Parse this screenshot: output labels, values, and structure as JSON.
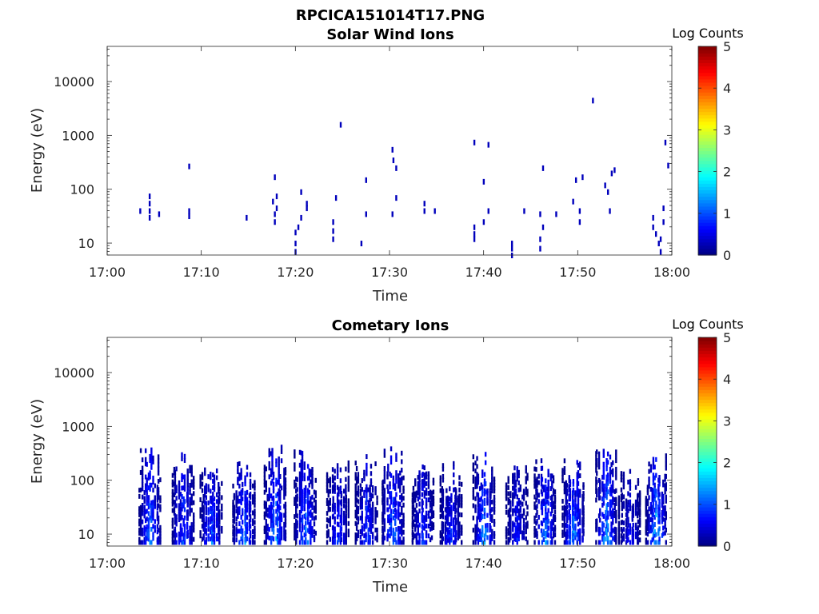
{
  "figure_title": "RPCICA151014T17.PNG",
  "colors": {
    "colormap": [
      "#00007f",
      "#0000ff",
      "#0080ff",
      "#00ffff",
      "#80ff80",
      "#ffff00",
      "#ff8000",
      "#ff0000",
      "#7f0000"
    ]
  },
  "chart_data": [
    {
      "type": "heatmap",
      "title": "Solar Wind Ions",
      "xlabel": "Time",
      "ylabel": "Energy (eV)",
      "x_ticks": [
        "17:00",
        "17:10",
        "17:20",
        "17:30",
        "17:40",
        "17:50",
        "18:00"
      ],
      "xlim_minutes": [
        0,
        60
      ],
      "y_ticks": [
        "10",
        "100",
        "1000",
        "10000"
      ],
      "ylim": [
        6,
        45000
      ],
      "y_scale": "log",
      "colorbar": {
        "label": "Log Counts",
        "ticks": [
          "0",
          "1",
          "2",
          "3",
          "4",
          "5"
        ],
        "range": [
          0,
          5
        ]
      },
      "points": [
        [
          3.5,
          40,
          0.3
        ],
        [
          4.5,
          30,
          0.3
        ],
        [
          4.5,
          40,
          0.3
        ],
        [
          4.5,
          55,
          0.3
        ],
        [
          4.5,
          75,
          0.3
        ],
        [
          5.5,
          35,
          0.3
        ],
        [
          8.7,
          32,
          0.3
        ],
        [
          8.7,
          40,
          0.3
        ],
        [
          8.7,
          270,
          0.3
        ],
        [
          14.8,
          30,
          0.3
        ],
        [
          17.6,
          60,
          0.3
        ],
        [
          17.8,
          35,
          0.3
        ],
        [
          17.8,
          25,
          0.3
        ],
        [
          17.8,
          170,
          0.3
        ],
        [
          18.0,
          45,
          0.3
        ],
        [
          18.0,
          75,
          0.3
        ],
        [
          20.0,
          10,
          0.3
        ],
        [
          20.0,
          7,
          0.3
        ],
        [
          20.0,
          16,
          0.3
        ],
        [
          20.3,
          20,
          0.3
        ],
        [
          20.6,
          30,
          0.3
        ],
        [
          20.6,
          90,
          0.3
        ],
        [
          21.2,
          45,
          0.3
        ],
        [
          21.2,
          55,
          0.3
        ],
        [
          24.0,
          12,
          0.3
        ],
        [
          24.0,
          17,
          0.3
        ],
        [
          24.0,
          25,
          0.3
        ],
        [
          24.3,
          70,
          0.3
        ],
        [
          24.8,
          1600,
          0.3
        ],
        [
          27.0,
          10,
          0.3
        ],
        [
          27.5,
          35,
          0.3
        ],
        [
          27.5,
          150,
          0.3
        ],
        [
          30.3,
          35,
          0.3
        ],
        [
          30.3,
          550,
          0.3
        ],
        [
          30.4,
          350,
          0.3
        ],
        [
          30.7,
          70,
          0.3
        ],
        [
          30.7,
          250,
          0.3
        ],
        [
          33.7,
          40,
          0.3
        ],
        [
          33.7,
          55,
          0.3
        ],
        [
          34.8,
          40,
          0.3
        ],
        [
          39.0,
          12,
          0.3
        ],
        [
          39.0,
          15,
          0.3
        ],
        [
          39.0,
          20,
          0.3
        ],
        [
          39.0,
          750,
          0.3
        ],
        [
          40.0,
          25,
          0.3
        ],
        [
          40.0,
          140,
          0.3
        ],
        [
          40.5,
          40,
          0.3
        ],
        [
          40.5,
          680,
          0.3
        ],
        [
          43.0,
          6,
          0.3
        ],
        [
          43.0,
          8,
          0.3
        ],
        [
          43.0,
          10,
          0.3
        ],
        [
          44.3,
          40,
          0.3
        ],
        [
          46.0,
          8,
          0.3
        ],
        [
          46.0,
          12,
          0.3
        ],
        [
          46.3,
          20,
          0.3
        ],
        [
          46.3,
          250,
          0.3
        ],
        [
          46.0,
          35,
          0.3
        ],
        [
          47.7,
          35,
          0.3
        ],
        [
          49.5,
          60,
          0.3
        ],
        [
          49.8,
          150,
          0.3
        ],
        [
          50.2,
          40,
          0.3
        ],
        [
          50.2,
          25,
          0.3
        ],
        [
          50.5,
          170,
          0.3
        ],
        [
          51.6,
          4500,
          0.3
        ],
        [
          52.9,
          120,
          0.3
        ],
        [
          53.2,
          90,
          0.3
        ],
        [
          53.4,
          40,
          0.3
        ],
        [
          53.6,
          200,
          0.3
        ],
        [
          53.9,
          230,
          0.3
        ],
        [
          58.0,
          30,
          0.3
        ],
        [
          58.0,
          20,
          0.3
        ],
        [
          58.3,
          15,
          0.3
        ],
        [
          58.6,
          10,
          0.3
        ],
        [
          58.8,
          7,
          0.3
        ],
        [
          58.8,
          12,
          0.3
        ],
        [
          59.1,
          25,
          0.3
        ],
        [
          59.1,
          45,
          0.3
        ],
        [
          59.3,
          750,
          0.3
        ],
        [
          59.6,
          280,
          0.3
        ]
      ]
    },
    {
      "type": "heatmap",
      "title": "Cometary Ions",
      "xlabel": "Time",
      "ylabel": "Energy (eV)",
      "x_ticks": [
        "17:00",
        "17:10",
        "17:20",
        "17:30",
        "17:40",
        "17:50",
        "18:00"
      ],
      "xlim_minutes": [
        0,
        60
      ],
      "y_ticks": [
        "10",
        "100",
        "1000",
        "10000"
      ],
      "ylim": [
        6,
        45000
      ],
      "y_scale": "log",
      "colorbar": {
        "label": "Log Counts",
        "ticks": [
          "0",
          "1",
          "2",
          "3",
          "4",
          "5"
        ],
        "range": [
          0,
          5
        ]
      },
      "bursts": [
        {
          "t": 4.5,
          "emax": 450,
          "peak": 1.3
        },
        {
          "t": 8.0,
          "emax": 400,
          "peak": 1.1
        },
        {
          "t": 11.0,
          "emax": 250,
          "peak": 1.2
        },
        {
          "t": 14.5,
          "emax": 250,
          "peak": 1.3
        },
        {
          "t": 17.8,
          "emax": 600,
          "peak": 1.4
        },
        {
          "t": 21.0,
          "emax": 500,
          "peak": 1.3
        },
        {
          "t": 24.5,
          "emax": 350,
          "peak": 0.9
        },
        {
          "t": 27.5,
          "emax": 400,
          "peak": 1.0
        },
        {
          "t": 30.3,
          "emax": 550,
          "peak": 1.3
        },
        {
          "t": 33.5,
          "emax": 300,
          "peak": 0.9
        },
        {
          "t": 36.5,
          "emax": 250,
          "peak": 0.9
        },
        {
          "t": 40.0,
          "emax": 400,
          "peak": 1.4
        },
        {
          "t": 43.5,
          "emax": 300,
          "peak": 0.8
        },
        {
          "t": 46.5,
          "emax": 450,
          "peak": 1.3
        },
        {
          "t": 49.5,
          "emax": 350,
          "peak": 1.4
        },
        {
          "t": 53.0,
          "emax": 500,
          "peak": 1.5
        },
        {
          "t": 55.5,
          "emax": 200,
          "peak": 0.7
        },
        {
          "t": 58.3,
          "emax": 350,
          "peak": 1.6
        }
      ]
    }
  ]
}
